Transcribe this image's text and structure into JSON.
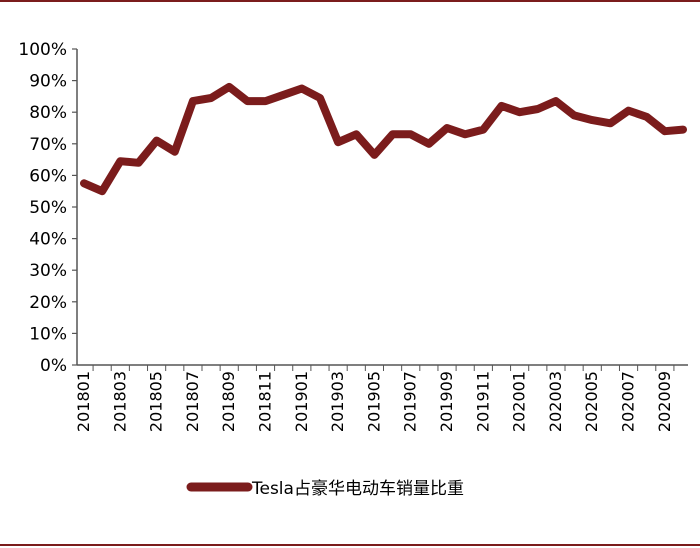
{
  "colors": {
    "series": "#7b1c1c",
    "axis": "#555555",
    "border": "#7b1c1c"
  },
  "chart_data": {
    "type": "line",
    "title": "",
    "xlabel": "",
    "ylabel": "",
    "ylim": [
      0,
      100
    ],
    "y_ticks": [
      "0%",
      "10%",
      "20%",
      "30%",
      "40%",
      "50%",
      "60%",
      "70%",
      "80%",
      "90%",
      "100%"
    ],
    "grid": false,
    "legend_position": "bottom",
    "x": [
      "201801",
      "201802",
      "201803",
      "201804",
      "201805",
      "201806",
      "201807",
      "201808",
      "201809",
      "201810",
      "201811",
      "201812",
      "201901",
      "201902",
      "201903",
      "201904",
      "201905",
      "201906",
      "201907",
      "201908",
      "201909",
      "201910",
      "201911",
      "201912",
      "202001",
      "202002",
      "202003",
      "202004",
      "202005",
      "202006",
      "202007",
      "202008",
      "202009",
      "202010"
    ],
    "x_tick_labels": [
      "201801",
      "201803",
      "201805",
      "201807",
      "201809",
      "201811",
      "201901",
      "201903",
      "201905",
      "201907",
      "201909",
      "201911",
      "202001",
      "202003",
      "202005",
      "202007",
      "202009"
    ],
    "series": [
      {
        "name": "Tesla占豪华电动车销量比重",
        "values": [
          57.5,
          55,
          64.5,
          64,
          71,
          67.5,
          83.5,
          84.5,
          88,
          83.5,
          83.5,
          85.5,
          87.5,
          84.5,
          70.5,
          73,
          66.5,
          73,
          73,
          70,
          75,
          73,
          74.5,
          82,
          80,
          81,
          83.5,
          79,
          77.5,
          76.5,
          80.5,
          78.5,
          74,
          74.5
        ]
      }
    ]
  }
}
